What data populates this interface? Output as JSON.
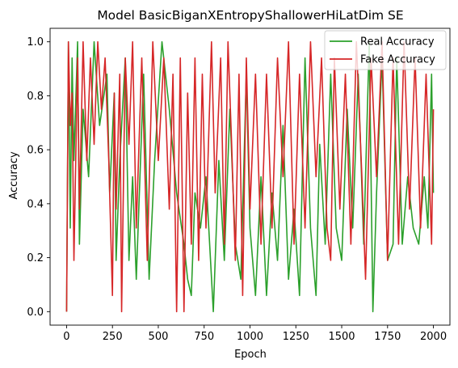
{
  "chart_data": {
    "type": "line",
    "title": "Model BasicBiganXEntropyShallowerHiLatDim SE",
    "xlabel": "Epoch",
    "ylabel": "Accuracy",
    "xlim": [
      -90,
      2090
    ],
    "ylim": [
      -0.05,
      1.05
    ],
    "x_ticks": [
      0,
      250,
      500,
      750,
      1000,
      1250,
      1500,
      1750,
      2000
    ],
    "y_ticks": [
      0.0,
      0.2,
      0.4,
      0.6,
      0.8,
      1.0
    ],
    "x_tick_labels": [
      "0",
      "250",
      "500",
      "750",
      "1000",
      "1250",
      "1500",
      "1750",
      "2000"
    ],
    "y_tick_labels": [
      "0.0",
      "0.2",
      "0.4",
      "0.6",
      "0.8",
      "1.0"
    ],
    "legend": {
      "position": "top-right"
    },
    "grid": false,
    "series": [
      {
        "name": "Real Accuracy",
        "color": "#2ca02c",
        "points": [
          [
            0,
            0.0
          ],
          [
            10,
            1.0
          ],
          [
            20,
            0.31
          ],
          [
            30,
            0.94
          ],
          [
            40,
            0.56
          ],
          [
            60,
            1.0
          ],
          [
            70,
            0.25
          ],
          [
            90,
            0.75
          ],
          [
            120,
            0.5
          ],
          [
            150,
            1.0
          ],
          [
            180,
            0.69
          ],
          [
            220,
            0.88
          ],
          [
            235,
            0.44
          ],
          [
            260,
            0.81
          ],
          [
            270,
            0.19
          ],
          [
            290,
            0.56
          ],
          [
            320,
            0.94
          ],
          [
            340,
            0.19
          ],
          [
            360,
            0.5
          ],
          [
            380,
            0.12
          ],
          [
            420,
            0.88
          ],
          [
            450,
            0.12
          ],
          [
            480,
            0.56
          ],
          [
            520,
            1.0
          ],
          [
            560,
            0.75
          ],
          [
            600,
            0.44
          ],
          [
            640,
            0.25
          ],
          [
            660,
            0.12
          ],
          [
            680,
            0.06
          ],
          [
            700,
            0.44
          ],
          [
            730,
            0.31
          ],
          [
            760,
            0.5
          ],
          [
            800,
            0.0
          ],
          [
            830,
            0.56
          ],
          [
            860,
            0.19
          ],
          [
            890,
            0.75
          ],
          [
            920,
            0.25
          ],
          [
            950,
            0.12
          ],
          [
            980,
            0.88
          ],
          [
            1000,
            0.31
          ],
          [
            1030,
            0.06
          ],
          [
            1060,
            0.5
          ],
          [
            1090,
            0.06
          ],
          [
            1120,
            0.44
          ],
          [
            1150,
            0.19
          ],
          [
            1180,
            0.69
          ],
          [
            1210,
            0.12
          ],
          [
            1240,
            0.38
          ],
          [
            1270,
            0.06
          ],
          [
            1300,
            0.94
          ],
          [
            1330,
            0.31
          ],
          [
            1360,
            0.06
          ],
          [
            1380,
            0.62
          ],
          [
            1410,
            0.25
          ],
          [
            1440,
            0.88
          ],
          [
            1470,
            0.31
          ],
          [
            1500,
            0.19
          ],
          [
            1530,
            0.75
          ],
          [
            1560,
            0.31
          ],
          [
            1590,
            0.88
          ],
          [
            1620,
            0.25
          ],
          [
            1650,
            1.0
          ],
          [
            1670,
            0.0
          ],
          [
            1690,
            0.44
          ],
          [
            1720,
            0.94
          ],
          [
            1750,
            0.19
          ],
          [
            1780,
            0.25
          ],
          [
            1800,
            0.94
          ],
          [
            1830,
            0.25
          ],
          [
            1860,
            0.5
          ],
          [
            1890,
            0.31
          ],
          [
            1920,
            0.25
          ],
          [
            1950,
            0.5
          ],
          [
            1970,
            0.31
          ],
          [
            1990,
            0.88
          ],
          [
            2000,
            0.44
          ]
        ]
      },
      {
        "name": "Fake Accuracy",
        "color": "#d62728",
        "points": [
          [
            0,
            0.0
          ],
          [
            10,
            1.0
          ],
          [
            20,
            0.69
          ],
          [
            30,
            0.81
          ],
          [
            40,
            0.19
          ],
          [
            60,
            0.94
          ],
          [
            70,
            0.38
          ],
          [
            90,
            1.0
          ],
          [
            110,
            0.56
          ],
          [
            130,
            0.94
          ],
          [
            150,
            0.62
          ],
          [
            170,
            1.0
          ],
          [
            190,
            0.75
          ],
          [
            210,
            0.94
          ],
          [
            230,
            0.56
          ],
          [
            250,
            0.06
          ],
          [
            260,
            0.81
          ],
          [
            270,
            0.38
          ],
          [
            290,
            0.88
          ],
          [
            300,
            0.0
          ],
          [
            320,
            0.94
          ],
          [
            340,
            0.62
          ],
          [
            360,
            1.0
          ],
          [
            380,
            0.31
          ],
          [
            410,
            0.94
          ],
          [
            440,
            0.19
          ],
          [
            470,
            1.0
          ],
          [
            500,
            0.56
          ],
          [
            530,
            0.94
          ],
          [
            560,
            0.38
          ],
          [
            580,
            0.88
          ],
          [
            600,
            0.0
          ],
          [
            620,
            0.94
          ],
          [
            640,
            0.0
          ],
          [
            660,
            0.81
          ],
          [
            680,
            0.25
          ],
          [
            700,
            0.94
          ],
          [
            720,
            0.19
          ],
          [
            740,
            0.88
          ],
          [
            760,
            0.31
          ],
          [
            790,
            1.0
          ],
          [
            810,
            0.44
          ],
          [
            840,
            0.94
          ],
          [
            860,
            0.25
          ],
          [
            880,
            1.0
          ],
          [
            900,
            0.62
          ],
          [
            920,
            0.19
          ],
          [
            940,
            0.88
          ],
          [
            960,
            0.06
          ],
          [
            980,
            0.94
          ],
          [
            1000,
            0.38
          ],
          [
            1030,
            0.88
          ],
          [
            1060,
            0.25
          ],
          [
            1090,
            0.88
          ],
          [
            1120,
            0.31
          ],
          [
            1150,
            0.94
          ],
          [
            1180,
            0.5
          ],
          [
            1210,
            1.0
          ],
          [
            1240,
            0.25
          ],
          [
            1270,
            0.88
          ],
          [
            1300,
            0.31
          ],
          [
            1330,
            1.0
          ],
          [
            1360,
            0.5
          ],
          [
            1390,
            0.94
          ],
          [
            1420,
            0.31
          ],
          [
            1440,
            0.19
          ],
          [
            1460,
            0.94
          ],
          [
            1490,
            0.38
          ],
          [
            1520,
            0.88
          ],
          [
            1550,
            0.25
          ],
          [
            1580,
            1.0
          ],
          [
            1610,
            0.5
          ],
          [
            1630,
            0.12
          ],
          [
            1660,
            0.94
          ],
          [
            1690,
            0.5
          ],
          [
            1720,
            1.0
          ],
          [
            1750,
            0.19
          ],
          [
            1780,
            0.94
          ],
          [
            1810,
            0.25
          ],
          [
            1840,
            1.0
          ],
          [
            1870,
            0.38
          ],
          [
            1900,
            0.94
          ],
          [
            1930,
            0.31
          ],
          [
            1960,
            0.88
          ],
          [
            1990,
            0.25
          ],
          [
            2000,
            0.75
          ]
        ]
      }
    ]
  }
}
